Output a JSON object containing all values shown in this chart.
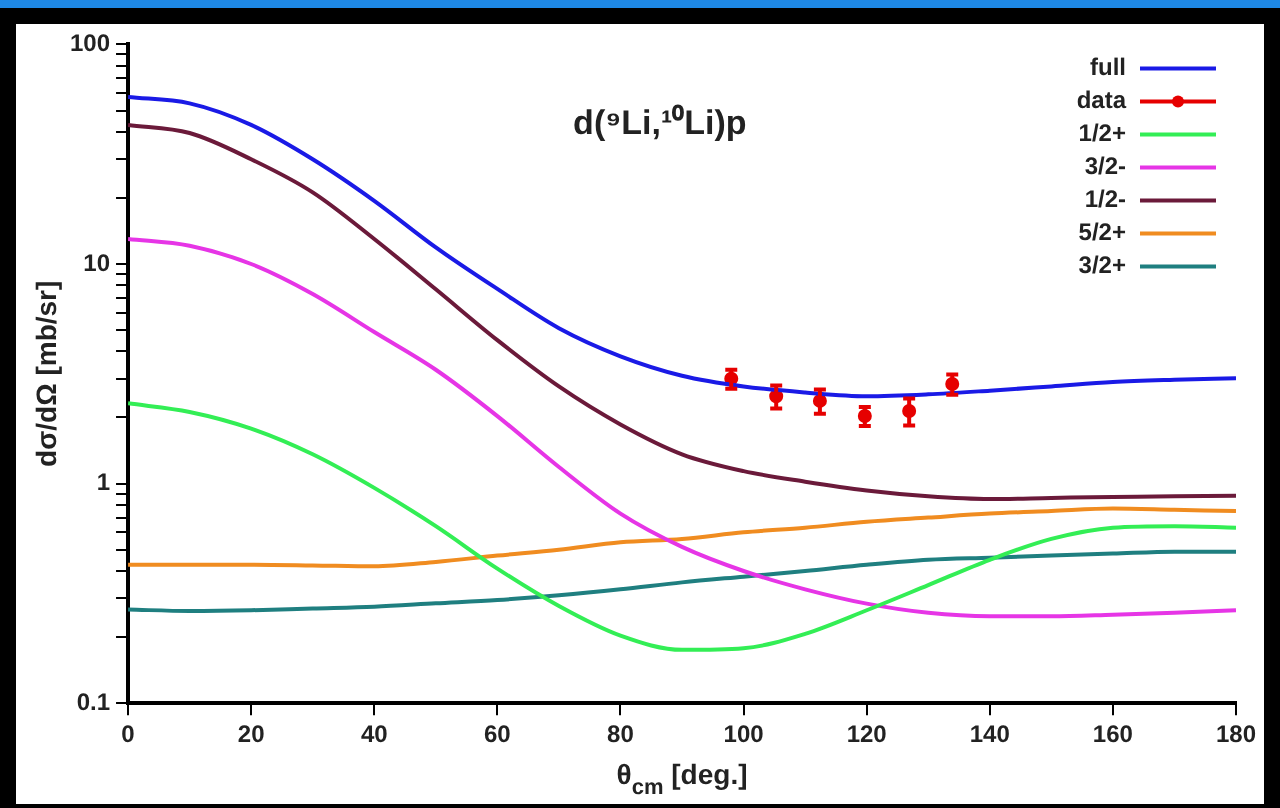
{
  "chart_data": {
    "type": "line",
    "annotations": [
      "d(⁹Li,¹⁰Li)p"
    ],
    "xlabel": "θ$_{cm}$ [deg.]",
    "ylabel": "dσ/dΩ [mb/sr]",
    "xlim": [
      0,
      180
    ],
    "xticks": [
      0,
      20,
      40,
      60,
      80,
      100,
      120,
      140,
      160,
      180
    ],
    "ylim": [
      0.1,
      100
    ],
    "yticks": [
      0.1,
      {
        "value": 0.2,
        "label": null
      },
      {
        "value": 0.3,
        "label": null
      },
      {
        "value": 0.4,
        "label": null
      },
      {
        "value": 0.5,
        "label": null
      },
      {
        "value": 0.6,
        "label": null
      },
      {
        "value": 0.7,
        "label": null
      },
      {
        "value": 0.8,
        "label": null
      },
      {
        "value": 0.9,
        "label": null
      },
      1,
      {
        "value": 2,
        "label": null
      },
      {
        "value": 3,
        "label": null
      },
      {
        "value": 4,
        "label": null
      },
      {
        "value": 5,
        "label": null
      },
      {
        "value": 6,
        "label": null
      },
      {
        "value": 7,
        "label": null
      },
      {
        "value": 8,
        "label": null
      },
      {
        "value": 9,
        "label": null
      },
      10,
      {
        "value": 20,
        "label": null
      },
      {
        "value": 30,
        "label": null
      },
      {
        "value": 40,
        "label": null
      },
      {
        "value": 50,
        "label": null
      },
      {
        "value": 60,
        "label": null
      },
      {
        "value": 70,
        "label": null
      },
      {
        "value": 80,
        "label": null
      },
      {
        "value": 90,
        "label": null
      },
      100
    ],
    "log": "y",
    "grid": false,
    "legend": "top right",
    "x": [
      0,
      10,
      20,
      30,
      40,
      50,
      60,
      70,
      80,
      90,
      100,
      110,
      120,
      130,
      140,
      150,
      160,
      170,
      180
    ],
    "series": [
      {
        "name": "full",
        "color": "#1a1ae6",
        "values": [
          57.6,
          53.9,
          43,
          30,
          19.4,
          11.9,
          7.7,
          5.1,
          3.8,
          3.1,
          2.77,
          2.6,
          2.5,
          2.55,
          2.65,
          2.77,
          2.9,
          2.97,
          3.02
        ]
      },
      {
        "name": "data",
        "type": "scatter",
        "marker": "circle",
        "color": "#e60000",
        "x": [
          98,
          105.3,
          112.4,
          119.7,
          126.9,
          133.9
        ],
        "values": [
          3.0,
          2.5,
          2.38,
          2.03,
          2.14,
          2.84
        ],
        "errors": [
          0.3,
          0.3,
          0.3,
          0.2,
          0.3,
          0.3
        ]
      },
      {
        "name": "1/2+",
        "color": "#33ee55",
        "values": [
          2.32,
          2.12,
          1.78,
          1.36,
          0.956,
          0.64,
          0.41,
          0.277,
          0.203,
          0.175,
          0.178,
          0.207,
          0.265,
          0.345,
          0.45,
          0.56,
          0.63,
          0.64,
          0.63
        ]
      },
      {
        "name": "3/2-",
        "color": "#e635e6",
        "values": [
          13,
          12.1,
          10,
          7.3,
          4.9,
          3.3,
          2.03,
          1.19,
          0.73,
          0.515,
          0.4,
          0.33,
          0.284,
          0.258,
          0.249,
          0.249,
          0.253,
          0.258,
          0.265
        ]
      },
      {
        "name": "1/2-",
        "color": "#6b1a3a",
        "values": [
          43,
          39.5,
          30,
          21.2,
          13,
          7.67,
          4.5,
          2.77,
          1.86,
          1.36,
          1.14,
          1.02,
          0.93,
          0.875,
          0.85,
          0.86,
          0.87,
          0.875,
          0.88
        ]
      },
      {
        "name": "5/2+",
        "color": "#f08c20",
        "values": [
          0.427,
          0.427,
          0.427,
          0.424,
          0.42,
          0.44,
          0.47,
          0.5,
          0.54,
          0.56,
          0.6,
          0.63,
          0.67,
          0.7,
          0.73,
          0.75,
          0.77,
          0.76,
          0.75
        ]
      },
      {
        "name": "3/2+",
        "color": "#1f7f80",
        "values": [
          0.267,
          0.263,
          0.265,
          0.27,
          0.275,
          0.285,
          0.295,
          0.31,
          0.33,
          0.355,
          0.377,
          0.4,
          0.427,
          0.45,
          0.46,
          0.47,
          0.48,
          0.49,
          0.49
        ]
      }
    ]
  }
}
